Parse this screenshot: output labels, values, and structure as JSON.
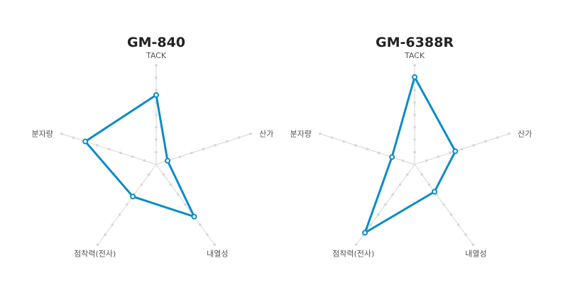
{
  "chart_data": [
    {
      "type": "radar",
      "title": "GM-840",
      "axes": [
        "TACK",
        "산가",
        "내열성",
        "점착력(전사)",
        "분자량"
      ],
      "rmax": 10,
      "ticks": 8,
      "values": [
        7,
        1.2,
        6.5,
        4,
        7.5
      ],
      "grid": true
    },
    {
      "type": "radar",
      "title": "GM-6388R",
      "axes": [
        "TACK",
        "산가",
        "내열성",
        "점착력(전사)",
        "분자량"
      ],
      "rmax": 10,
      "ticks": 8,
      "values": [
        8.8,
        4.3,
        3.4,
        8.5,
        2.4
      ],
      "grid": true
    }
  ],
  "colors": {
    "series": "#0a8cc6",
    "grid": "#d6d6d6",
    "title": "#222222",
    "label": "#555555"
  }
}
